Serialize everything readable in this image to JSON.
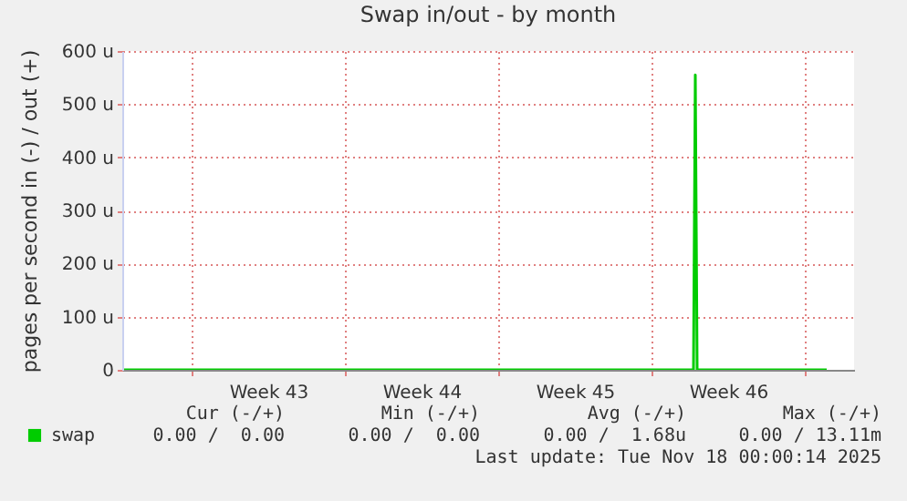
{
  "chart_data": {
    "type": "line",
    "title": "Swap in/out - by month",
    "ylabel": "pages per second in (-) / out (+)",
    "x": [
      "2025-10-16T22:00",
      "2025-11-11T22:00",
      "2025-11-12T00:00",
      "2025-11-12T02:00",
      "2025-11-18T00:00"
    ],
    "series": [
      {
        "name": "swap",
        "color": "#00cc00",
        "values": [
          0,
          0,
          555,
          0,
          0
        ]
      }
    ],
    "xlim": [
      "2025-10-16T20:00",
      "2025-11-19T06:00"
    ],
    "xticks": [
      {
        "value": "2025-10-20T00:00",
        "label": null
      },
      {
        "value": "2025-10-23T12:00",
        "label": "Week 43"
      },
      {
        "value": "2025-10-27T00:00",
        "label": null
      },
      {
        "value": "2025-10-30T12:00",
        "label": "Week 44"
      },
      {
        "value": "2025-11-03T00:00",
        "label": null
      },
      {
        "value": "2025-11-06T12:00",
        "label": "Week 45"
      },
      {
        "value": "2025-11-10T00:00",
        "label": null
      },
      {
        "value": "2025-11-13T12:00",
        "label": "Week 46"
      },
      {
        "value": "2025-11-17T00:00",
        "label": null
      }
    ],
    "ylim": [
      0,
      600
    ],
    "yticks": [
      {
        "value": 0,
        "label": "0"
      },
      {
        "value": 100,
        "label": "100 u"
      },
      {
        "value": 200,
        "label": "200 u"
      },
      {
        "value": 300,
        "label": "300 u"
      },
      {
        "value": 400,
        "label": "400 u"
      },
      {
        "value": 500,
        "label": "500 u"
      },
      {
        "value": 600,
        "label": "600 u"
      }
    ],
    "grid": true,
    "legend": "bottom left",
    "annotations": [
      "Cur (-/+)",
      "Min (-/+)",
      "Avg (-/+)",
      "Max (-/+)",
      "0.00 /  0.00",
      "0.00 /  0.00",
      "0.00 /  1.68u",
      "0.00 / 13.11m",
      "Last update: Tue Nov 18 00:00:14 2025"
    ]
  }
}
